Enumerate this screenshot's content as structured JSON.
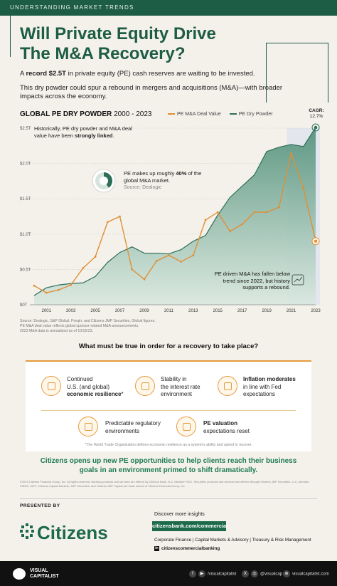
{
  "header": {
    "kicker": "UNDERSTANDING MARKET TRENDS",
    "title_line1": "Will Private Equity Drive",
    "title_line2": "The M&A Recovery?"
  },
  "intro": {
    "p1_pre": "A ",
    "p1_bold": "record $2.5T",
    "p1_post": " in private equity (PE) cash reserves are waiting to be invested.",
    "p2": "This dry powder could spur a rebound in mergers and acquisitions (M&A)—with broader impacts across the economy."
  },
  "chart_data": {
    "type": "line",
    "title": "GLOBAL PE DRY POWDER",
    "subtitle": "2000 - 2023",
    "x": [
      2000,
      2001,
      2002,
      2003,
      2004,
      2005,
      2006,
      2007,
      2008,
      2009,
      2010,
      2011,
      2012,
      2013,
      2014,
      2015,
      2016,
      2017,
      2018,
      2019,
      2020,
      2021,
      2022,
      2023
    ],
    "x_tick_labels": [
      "2001",
      "2003",
      "2005",
      "2007",
      "2009",
      "2011",
      "2013",
      "2015",
      "2017",
      "2019",
      "2021",
      "2023"
    ],
    "y_tick_labels": [
      "$0T",
      "$0.5T",
      "$1.0T",
      "$1.5T",
      "$2.0T",
      "$2.5T"
    ],
    "ylim": [
      0,
      2.5
    ],
    "series": [
      {
        "name": "PE M&A Deal Value",
        "color": "#e08f35",
        "style": "line",
        "values": [
          0.27,
          0.17,
          0.21,
          0.28,
          0.52,
          0.68,
          1.17,
          1.25,
          0.5,
          0.36,
          0.62,
          0.7,
          0.61,
          0.7,
          1.2,
          1.31,
          1.04,
          1.14,
          1.31,
          1.31,
          1.38,
          2.14,
          1.65,
          0.9
        ]
      },
      {
        "name": "PE Dry Powder",
        "color": "#2c6e57",
        "style": "area",
        "values": [
          0.13,
          0.24,
          0.28,
          0.3,
          0.31,
          0.4,
          0.6,
          0.74,
          0.82,
          0.73,
          0.73,
          0.72,
          0.78,
          0.9,
          0.98,
          1.27,
          1.52,
          1.68,
          1.84,
          2.17,
          2.23,
          2.27,
          2.24,
          2.51
        ]
      }
    ],
    "annotations": {
      "linked_pre": "Historically, PE dry powder and M&A deal value have been ",
      "linked_bold": "strongly linked",
      "linked_post": ".",
      "cagr_label": "CAGR:",
      "cagr_value": "12.7%",
      "pie_pre": "PE makes up roughly ",
      "pie_bold": "40%",
      "pie_post": " of the global M&A market.",
      "pie_source": "Source: Dealogic",
      "pie_share": 0.4,
      "drop": "PE driven M&A has fallen below trend since 2022, but history supports a rebound."
    },
    "highlight_range": [
      2021,
      2023
    ]
  },
  "sources": {
    "line1": "Source: Dealogic, S&P Global, Preqin, and Citizens JMP Securities, Global figures.",
    "line2": "PE M&A deal value reflects global sponsor-related M&A announcements.",
    "line3": "2023 M&A data is annualized as of 10/15/23."
  },
  "conditions": {
    "question": "What must be true in order for a recovery to take place?",
    "items": [
      {
        "pre": "Continued",
        "line2": "U.S. (and global)",
        "bold": "economic resilience",
        "suffix": "*"
      },
      {
        "pre": "Stability in",
        "line2": "the interest rate",
        "line3": "environment"
      },
      {
        "bold": "Inflation moderates",
        "line2": "in line with Fed",
        "line3": "expectations"
      },
      {
        "line1": "Predictable regulatory",
        "line2": "environments"
      },
      {
        "bold": "PE valuation",
        "line2": "expectations reset"
      }
    ],
    "footnote": "*The World Trade Organization defines economic resilience as a system's ability and speed to recover."
  },
  "tagline": "Citizens opens up new PE opportunities to help clients reach their business goals in an environment primed to shift dramatically.",
  "legal": "©2023 Citizens Financial Group, Inc. All rights reserved. Banking products and services are offered by Citizens Bank, N.A. Member FDIC. Securities products and services are offered through Citizens JMP Securities, LLC, Member FINRA, SIPC. Citizens Capital Markets, JMP Securities, and Citizens JMP Capital are trade names of Citizens Financial Group, Inc.",
  "footer": {
    "presented_by": "PRESENTED BY",
    "brand": "Citizens",
    "discover": "Discover more insights",
    "url": "citizensbank.com/commercial",
    "links": "Corporate Finance  |  Capital Markets & Advisory  |  Treasury & Risk Management",
    "linkedin": "citizenscommercialbanking",
    "vc_line1": "VISUAL",
    "vc_line2": "CAPITALIST",
    "social1": "/visualcapitalist",
    "social2": "@visualcap",
    "social3": "visualcapitalist.com"
  }
}
